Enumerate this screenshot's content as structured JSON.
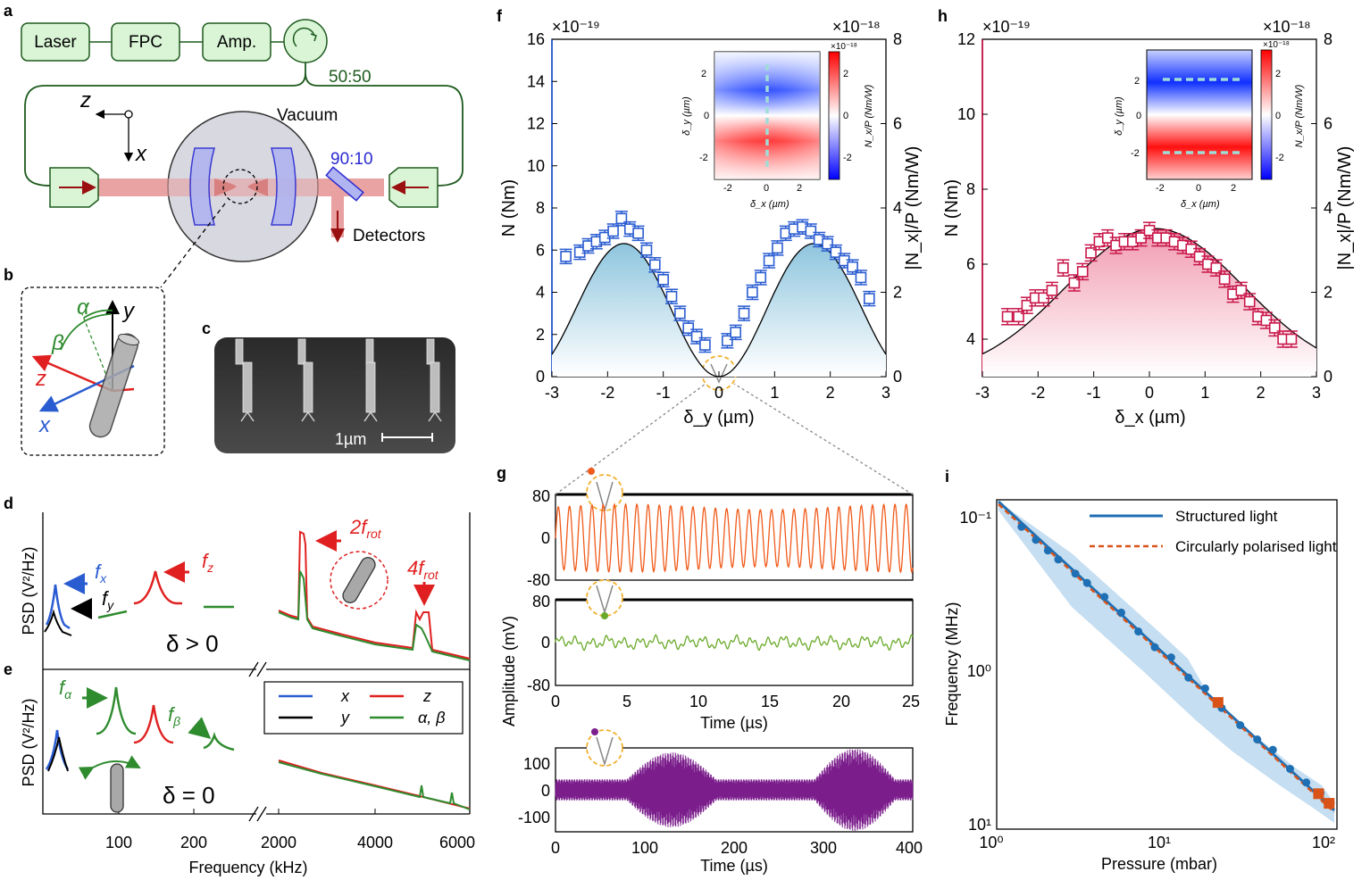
{
  "labels": {
    "a": "a",
    "b": "b",
    "c": "c",
    "d": "d",
    "e": "e",
    "f": "f",
    "g": "g",
    "h": "h",
    "i": "i"
  },
  "colors": {
    "blue": "#2a5cd1",
    "red": "#e02020",
    "green": "#2e8b2e",
    "black": "#000000",
    "orange": "#f05a1a",
    "purple": "#7b1e8c",
    "crimson": "#c8174a",
    "lightgreen": "#d9f5d6",
    "beam": "#e8a0a0"
  },
  "panel_a": {
    "boxes": [
      "Laser",
      "FPC",
      "Amp."
    ],
    "split_label": "50:50",
    "vacuum_label": "Vacuum",
    "bs_label": "90:10",
    "detectors_label": "Detectors",
    "axis_z": "z",
    "axis_x": "x"
  },
  "panel_b": {
    "alpha": "α",
    "beta": "β",
    "y": "y",
    "z": "z",
    "x": "x"
  },
  "panel_c": {
    "scale_label": "1µm"
  },
  "panel_de": {
    "ylabel_d": "PSD (V²/Hz)",
    "ylabel_e": "PSD (V²/Hz)",
    "xlabel": "Frequency (kHz)",
    "xticks": [
      "100",
      "200",
      "2000",
      "4000",
      "6000"
    ],
    "d_labels": {
      "fx": "f",
      "fx_sub": "x",
      "fy": "f",
      "fy_sub": "y",
      "fz": "f",
      "fz_sub": "z",
      "two_frot": "2f",
      "frot_sub": "rot",
      "four_frot": "4f",
      "delta": "δ > 0"
    },
    "e_labels": {
      "falpha": "f",
      "falpha_sub": "α",
      "fbeta": "f",
      "fbeta_sub": "β",
      "delta": "δ = 0"
    },
    "legend": [
      {
        "name": "x",
        "color": "#2a5cd1"
      },
      {
        "name": "z",
        "color": "#e02020"
      },
      {
        "name": "y",
        "color": "#000000"
      },
      {
        "name": "α, β",
        "color": "#2e8b2e"
      }
    ]
  },
  "chart_data": [
    {
      "panel": "f",
      "type": "scatter",
      "xlabel": "δ_y (µm)",
      "ylabel": "N (Nm)",
      "ylabel_right": "|N_x|/P (Nm/W)",
      "x_multiplier": "×10⁻¹⁹",
      "right_multiplier": "×10⁻¹⁸",
      "xlim": [
        -3,
        3
      ],
      "ylim": [
        0,
        16
      ],
      "ylim_right": [
        0,
        8
      ],
      "xticks": [
        "-3",
        "-2",
        "-1",
        "0",
        "1",
        "2",
        "3"
      ],
      "yticks": [
        "0",
        "2",
        "4",
        "6",
        "8",
        "10",
        "12",
        "14",
        "16"
      ],
      "yticks_right": [
        "0",
        "2",
        "4",
        "6",
        "8"
      ],
      "series": [
        {
          "marker": "square",
          "color": "#2a5cd1",
          "x": [
            -2.75,
            -2.5,
            -2.35,
            -2.2,
            -2.05,
            -1.9,
            -1.75,
            -1.6,
            -1.45,
            -1.3,
            -1.15,
            -1.0,
            -0.85,
            -0.7,
            -0.55,
            -0.4,
            -0.25,
            0.15,
            0.3,
            0.45,
            0.6,
            0.75,
            0.9,
            1.05,
            1.2,
            1.35,
            1.5,
            1.65,
            1.8,
            1.95,
            2.1,
            2.25,
            2.4,
            2.55,
            2.7
          ],
          "y": [
            5.7,
            5.9,
            6.2,
            6.4,
            6.6,
            6.9,
            7.5,
            7.0,
            6.8,
            6.0,
            5.3,
            4.6,
            3.8,
            3.0,
            2.3,
            1.9,
            1.5,
            1.7,
            2.1,
            3.0,
            4.0,
            4.7,
            5.5,
            6.1,
            6.8,
            7.0,
            7.1,
            6.9,
            6.5,
            6.3,
            5.9,
            5.5,
            5.2,
            4.7,
            3.7
          ]
        },
        {
          "name": "fit",
          "type": "line",
          "color": "#000000"
        }
      ],
      "inset": {
        "type": "heatmap",
        "xlabel": "δ_x (µm)",
        "ylabel": "δ_y (µm)",
        "cbar_label": "N_x/P (Nm/W)",
        "cbar_multiplier": "×10⁻¹⁸",
        "xticks": [
          "-2",
          "0",
          "2"
        ],
        "yticks": [
          "-2",
          "0",
          "2"
        ],
        "cbar_ticks": [
          "-2",
          "0",
          "2"
        ]
      }
    },
    {
      "panel": "g",
      "type": "line",
      "xlabel": "Time (µs)",
      "ylabel": "Amplitude (mV)",
      "series": [
        {
          "name": "top",
          "color": "#f05a1a",
          "ylim": [
            -80,
            80
          ],
          "yticks": [
            "80",
            "0",
            "-80"
          ]
        },
        {
          "name": "middle",
          "color": "#6aaa2a",
          "ylim": [
            -80,
            80
          ],
          "yticks": [
            "80",
            "0",
            "-80"
          ],
          "xticks": [
            "0",
            "5",
            "10",
            "15",
            "20",
            "25"
          ],
          "xlim": [
            0,
            25
          ]
        },
        {
          "name": "bottom",
          "color": "#7b1e8c",
          "ylim": [
            -150,
            150
          ],
          "yticks": [
            "100",
            "0",
            "-100"
          ],
          "xticks": [
            "0",
            "100",
            "200",
            "300",
            "400"
          ],
          "xlim": [
            0,
            400
          ]
        }
      ]
    },
    {
      "panel": "h",
      "type": "scatter",
      "xlabel": "δ_x (µm)",
      "ylabel": "N (Nm)",
      "ylabel_right": "|N_x|/P (Nm/W)",
      "x_multiplier": "×10⁻¹⁹",
      "right_multiplier": "×10⁻¹⁸",
      "xlim": [
        -3,
        3
      ],
      "ylim": [
        3,
        12
      ],
      "ylim_right": [
        0,
        8
      ],
      "xticks": [
        "-3",
        "-2",
        "-1",
        "0",
        "1",
        "2",
        "3"
      ],
      "yticks": [
        "4",
        "6",
        "8",
        "10",
        "12"
      ],
      "yticks_right": [
        "0",
        "2",
        "4",
        "6",
        "8"
      ],
      "series": [
        {
          "marker": "square",
          "color": "#c8174a",
          "x": [
            -2.55,
            -2.35,
            -2.2,
            -2.05,
            -1.9,
            -1.75,
            -1.55,
            -1.35,
            -1.2,
            -1.05,
            -0.9,
            -0.75,
            -0.6,
            -0.45,
            -0.3,
            -0.15,
            0.0,
            0.15,
            0.3,
            0.45,
            0.6,
            0.75,
            0.9,
            1.05,
            1.2,
            1.35,
            1.5,
            1.65,
            1.8,
            1.95,
            2.1,
            2.25,
            2.4,
            2.55
          ],
          "y": [
            4.6,
            4.6,
            4.9,
            5.1,
            5.1,
            5.3,
            5.9,
            5.5,
            5.8,
            6.3,
            6.6,
            6.7,
            6.5,
            6.6,
            6.6,
            6.7,
            6.9,
            6.7,
            6.7,
            6.6,
            6.5,
            6.4,
            6.2,
            6.0,
            5.9,
            5.6,
            5.2,
            5.3,
            5.0,
            4.6,
            4.5,
            4.3,
            4.0,
            4.0
          ]
        },
        {
          "name": "fit",
          "type": "line",
          "color": "#000000"
        }
      ],
      "inset": {
        "type": "heatmap",
        "xlabel": "δ_x (µm)",
        "ylabel": "δ_y (µm)",
        "cbar_label": "N_x/P (Nm/W)",
        "cbar_multiplier": "×10⁻¹⁸",
        "xticks": [
          "-2",
          "0",
          "2"
        ],
        "yticks": [
          "-2",
          "0",
          "2"
        ],
        "cbar_ticks": [
          "-2",
          "0",
          "2"
        ]
      }
    },
    {
      "panel": "i",
      "type": "line",
      "xlabel": "Pressure (mbar)",
      "ylabel": "Frequency (MHz)",
      "xticks": [
        "10⁰",
        "10¹",
        "10²"
      ],
      "yticks": [
        "10⁻¹",
        "10⁰",
        "10¹"
      ],
      "series": [
        {
          "name": "Structured light",
          "color": "#1f6fb4",
          "line": "solid"
        },
        {
          "name": "Circularly polarised light",
          "color": "#d95319",
          "line": "dashed"
        }
      ],
      "points_blue_x": [
        1.4,
        1.7,
        2.0,
        2.3,
        2.9,
        3.4,
        4.3,
        5.4,
        6.8,
        8.5,
        10.6,
        13.4,
        16.8,
        21,
        27,
        34,
        42,
        53,
        66,
        80,
        92
      ],
      "points_orange_x": [
        20,
        78,
        90
      ]
    }
  ]
}
